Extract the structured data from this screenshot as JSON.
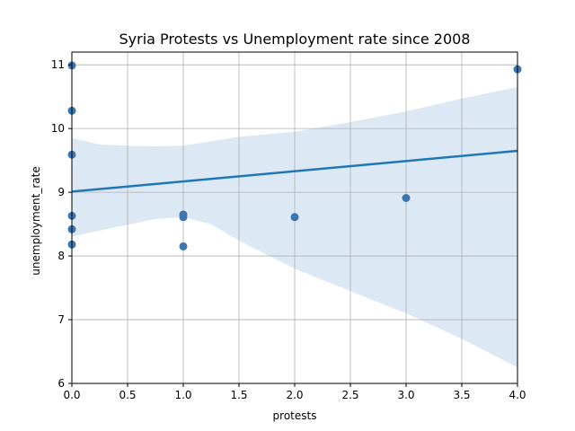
{
  "chart_data": {
    "type": "scatter",
    "title": "Syria Protests vs Unemployment rate since 2008",
    "xlabel": "protests",
    "ylabel": "unemployment_rate",
    "xlim": [
      0,
      4
    ],
    "ylim": [
      6,
      11.2
    ],
    "xticks": [
      "0.0",
      "0.5",
      "1.0",
      "1.5",
      "2.0",
      "2.5",
      "3.0",
      "3.5",
      "4.0"
    ],
    "yticks": [
      "6",
      "7",
      "8",
      "9",
      "10",
      "11"
    ],
    "grid": true,
    "points": [
      {
        "x": 0,
        "y": 10.99
      },
      {
        "x": 0,
        "y": 10.28
      },
      {
        "x": 0,
        "y": 9.59
      },
      {
        "x": 0,
        "y": 8.63
      },
      {
        "x": 0,
        "y": 8.42
      },
      {
        "x": 0,
        "y": 8.18
      },
      {
        "x": 1,
        "y": 8.65
      },
      {
        "x": 1,
        "y": 8.61
      },
      {
        "x": 1,
        "y": 8.15
      },
      {
        "x": 2,
        "y": 8.61
      },
      {
        "x": 3,
        "y": 8.91
      },
      {
        "x": 4,
        "y": 10.93
      }
    ],
    "regression_line": {
      "x": [
        0,
        4
      ],
      "y": [
        9.01,
        9.65
      ]
    },
    "confidence_band": {
      "x": [
        0,
        0.25,
        0.5,
        0.75,
        1.0,
        1.25,
        1.5,
        2.0,
        2.5,
        3.0,
        3.5,
        4.0
      ],
      "lower": [
        8.3,
        8.4,
        8.49,
        8.58,
        8.61,
        8.5,
        8.24,
        7.8,
        7.45,
        7.1,
        6.7,
        6.25
      ],
      "upper": [
        9.85,
        9.75,
        9.73,
        9.72,
        9.73,
        9.8,
        9.87,
        9.95,
        10.1,
        10.27,
        10.47,
        10.65
      ]
    },
    "colors": {
      "points": "#3b76af",
      "line": "#1f77b4",
      "band": "#dce8f4",
      "grid": "#b0b0b0"
    }
  }
}
